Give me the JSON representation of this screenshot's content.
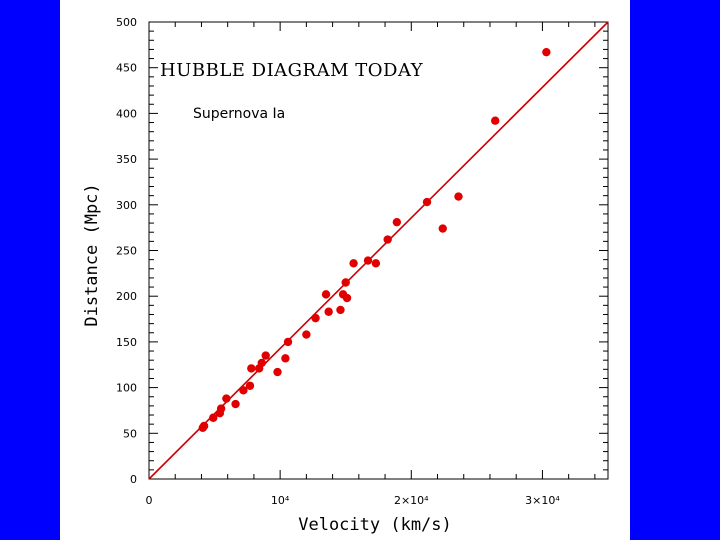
{
  "colors": {
    "background": "#0000ff",
    "panel": "#ffffff",
    "data_points": "#e00000",
    "fit_line": "#cc0000"
  },
  "chart_data": {
    "type": "scatter",
    "title": "HUBBLE DIAGRAM TODAY",
    "subtitle": "Supernova Ia",
    "xlabel": "Velocity (km/s)",
    "ylabel": "Distance (Mpc)",
    "xlim": [
      0,
      35000
    ],
    "ylim": [
      0,
      500
    ],
    "grid": false,
    "x_ticks": [
      {
        "value": 0,
        "label": "0"
      },
      {
        "value": 10000,
        "label": "10⁴"
      },
      {
        "value": 20000,
        "label": "2×10⁴"
      },
      {
        "value": 30000,
        "label": "3×10⁴"
      }
    ],
    "y_ticks": [
      {
        "value": 0,
        "label": "0"
      },
      {
        "value": 50,
        "label": "50"
      },
      {
        "value": 100,
        "label": "100"
      },
      {
        "value": 150,
        "label": "150"
      },
      {
        "value": 200,
        "label": "200"
      },
      {
        "value": 250,
        "label": "250"
      },
      {
        "value": 300,
        "label": "300"
      },
      {
        "value": 350,
        "label": "350"
      },
      {
        "value": 400,
        "label": "400"
      },
      {
        "value": 450,
        "label": "450"
      },
      {
        "value": 500,
        "label": "500"
      }
    ],
    "fit_line": {
      "x": [
        0,
        35000
      ],
      "y": [
        0,
        500
      ]
    },
    "points": [
      [
        4100,
        56
      ],
      [
        4200,
        58
      ],
      [
        4900,
        67
      ],
      [
        5400,
        72
      ],
      [
        5500,
        77
      ],
      [
        5900,
        88
      ],
      [
        6600,
        82
      ],
      [
        7200,
        97
      ],
      [
        7700,
        102
      ],
      [
        7800,
        121
      ],
      [
        8400,
        121
      ],
      [
        8600,
        127
      ],
      [
        8900,
        135
      ],
      [
        9800,
        117
      ],
      [
        10400,
        132
      ],
      [
        10600,
        150
      ],
      [
        12000,
        158
      ],
      [
        12700,
        176
      ],
      [
        13500,
        202
      ],
      [
        13700,
        183
      ],
      [
        14600,
        185
      ],
      [
        14800,
        202
      ],
      [
        15000,
        215
      ],
      [
        15100,
        198
      ],
      [
        15600,
        236
      ],
      [
        16700,
        239
      ],
      [
        17300,
        236
      ],
      [
        18200,
        262
      ],
      [
        18900,
        281
      ],
      [
        21200,
        303
      ],
      [
        22400,
        274
      ],
      [
        23600,
        309
      ],
      [
        26400,
        392
      ],
      [
        30300,
        467
      ]
    ]
  }
}
